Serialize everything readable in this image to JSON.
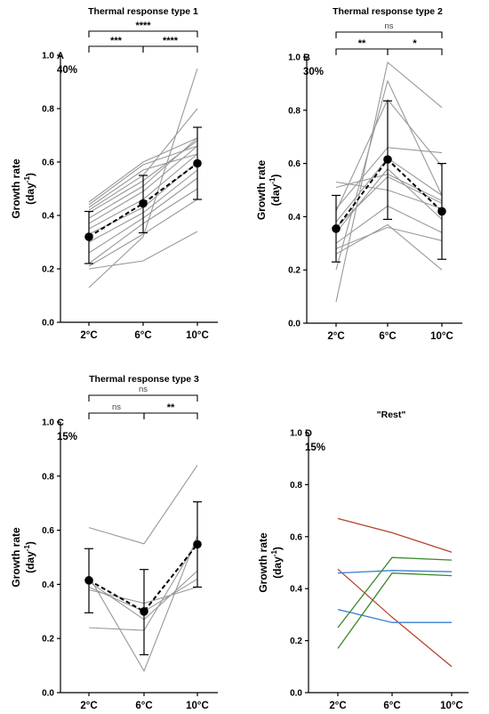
{
  "chart_data": [
    {
      "type": "line",
      "panel": "A",
      "title": "Thermal response type 1",
      "percentage": "40%",
      "ylabel_line1": "Growth rate",
      "ylabel_line2_base": "(day",
      "ylabel_line2_sup": "-1",
      "ylabel_line2_end": ")",
      "categories": [
        "2°C",
        "6°C",
        "10°C"
      ],
      "ylim": [
        0,
        1.0
      ],
      "yticks": [
        "0.0",
        "0.2",
        "0.4",
        "0.6",
        "0.8",
        "1.0"
      ],
      "series": [
        {
          "values": [
            0.13,
            0.32,
            0.95
          ]
        },
        {
          "values": [
            0.2,
            0.23,
            0.34
          ]
        },
        {
          "values": [
            0.21,
            0.33,
            0.46
          ]
        },
        {
          "values": [
            0.22,
            0.37,
            0.5
          ]
        },
        {
          "values": [
            0.26,
            0.39,
            0.54
          ]
        },
        {
          "values": [
            0.3,
            0.41,
            0.57
          ]
        },
        {
          "values": [
            0.33,
            0.43,
            0.6
          ]
        },
        {
          "values": [
            0.35,
            0.46,
            0.63
          ]
        },
        {
          "values": [
            0.37,
            0.49,
            0.66
          ]
        },
        {
          "values": [
            0.39,
            0.51,
            0.69
          ]
        },
        {
          "values": [
            0.41,
            0.53,
            0.68
          ]
        },
        {
          "values": [
            0.42,
            0.55,
            0.8
          ]
        },
        {
          "values": [
            0.43,
            0.57,
            0.63
          ]
        },
        {
          "values": [
            0.44,
            0.59,
            0.66
          ]
        },
        {
          "values": [
            0.45,
            0.6,
            0.69
          ]
        }
      ],
      "mean": {
        "values": [
          0.32,
          0.445,
          0.595
        ],
        "err_low": [
          0.22,
          0.335,
          0.46
        ],
        "err_high": [
          0.415,
          0.55,
          0.73
        ]
      },
      "significance": [
        {
          "from": 0,
          "to": 2,
          "label": "****",
          "level": 2
        },
        {
          "from": 0,
          "to": 1,
          "label": "***",
          "level": 1
        },
        {
          "from": 1,
          "to": 2,
          "label": "****",
          "level": 1
        }
      ]
    },
    {
      "type": "line",
      "panel": "B",
      "title": "Thermal response type 2",
      "percentage": "30%",
      "ylabel_line1": "Growth rate",
      "ylabel_line2_base": "(day",
      "ylabel_line2_sup": "-1",
      "ylabel_line2_end": ")",
      "categories": [
        "2°C",
        "6°C",
        "10°C"
      ],
      "ylim": [
        0,
        1.0
      ],
      "yticks": [
        "0.0",
        "0.2",
        "0.4",
        "0.6",
        "0.8",
        "1.0"
      ],
      "series": [
        {
          "values": [
            0.08,
            0.98,
            0.81
          ]
        },
        {
          "values": [
            0.2,
            0.91,
            0.48
          ]
        },
        {
          "values": [
            0.26,
            0.37,
            0.2
          ]
        },
        {
          "values": [
            0.28,
            0.36,
            0.31
          ]
        },
        {
          "values": [
            0.3,
            0.44,
            0.34
          ]
        },
        {
          "values": [
            0.34,
            0.58,
            0.39
          ]
        },
        {
          "values": [
            0.36,
            0.55,
            0.45
          ]
        },
        {
          "values": [
            0.38,
            0.62,
            0.48
          ]
        },
        {
          "values": [
            0.42,
            0.84,
            0.59
          ]
        },
        {
          "values": [
            0.43,
            0.66,
            0.64
          ]
        },
        {
          "values": [
            0.51,
            0.56,
            0.46
          ]
        },
        {
          "values": [
            0.53,
            0.5,
            0.43
          ]
        }
      ],
      "mean": {
        "values": [
          0.355,
          0.615,
          0.42
        ],
        "err_low": [
          0.23,
          0.39,
          0.24
        ],
        "err_high": [
          0.48,
          0.835,
          0.6
        ]
      },
      "significance": [
        {
          "from": 0,
          "to": 2,
          "label": "ns",
          "level": 2
        },
        {
          "from": 0,
          "to": 1,
          "label": "**",
          "level": 1
        },
        {
          "from": 1,
          "to": 2,
          "label": "*",
          "level": 1
        }
      ]
    },
    {
      "type": "line",
      "panel": "C",
      "title": "Thermal response type 3",
      "percentage": "15%",
      "ylabel_line1": "Growth rate",
      "ylabel_line2_base": "(day",
      "ylabel_line2_sup": "-1",
      "ylabel_line2_end": ")",
      "categories": [
        "2°C",
        "6°C",
        "10°C"
      ],
      "ylim": [
        0,
        1.0
      ],
      "yticks": [
        "0.0",
        "0.2",
        "0.4",
        "0.6",
        "0.8",
        "1.0"
      ],
      "series": [
        {
          "values": [
            0.61,
            0.55,
            0.84
          ]
        },
        {
          "values": [
            0.43,
            0.08,
            0.58
          ]
        },
        {
          "values": [
            0.41,
            0.27,
            0.45
          ]
        },
        {
          "values": [
            0.39,
            0.3,
            0.42
          ]
        },
        {
          "values": [
            0.38,
            0.33,
            0.39
          ]
        },
        {
          "values": [
            0.24,
            0.23,
            0.56
          ]
        }
      ],
      "mean": {
        "values": [
          0.415,
          0.3,
          0.548
        ],
        "err_low": [
          0.295,
          0.14,
          0.39
        ],
        "err_high": [
          0.532,
          0.455,
          0.705
        ]
      },
      "significance": [
        {
          "from": 0,
          "to": 2,
          "label": "ns",
          "level": 2
        },
        {
          "from": 0,
          "to": 1,
          "label": "ns",
          "level": 1
        },
        {
          "from": 1,
          "to": 2,
          "label": "**",
          "level": 1
        }
      ]
    },
    {
      "type": "line",
      "panel": "D",
      "title": "\"Rest\"",
      "percentage": "15%",
      "ylabel_line1": "Growth rate",
      "ylabel_line2_base": "(day",
      "ylabel_line2_sup": "-1",
      "ylabel_line2_end": ")",
      "categories": [
        "2°C",
        "6°C",
        "10°C"
      ],
      "ylim": [
        0,
        1.0
      ],
      "yticks": [
        "0.0",
        "0.2",
        "0.4",
        "0.6",
        "0.8",
        "1.0"
      ],
      "series": [
        {
          "color": "#b5452c",
          "values": [
            0.67,
            0.615,
            0.54
          ]
        },
        {
          "color": "#b5452c",
          "values": [
            0.475,
            0.29,
            0.1
          ]
        },
        {
          "color": "#3b7fd4",
          "values": [
            0.46,
            0.47,
            0.465
          ]
        },
        {
          "color": "#3b7fd4",
          "values": [
            0.32,
            0.27,
            0.27
          ]
        },
        {
          "color": "#3a8a2a",
          "values": [
            0.25,
            0.52,
            0.51
          ]
        },
        {
          "color": "#3a8a2a",
          "values": [
            0.17,
            0.46,
            0.45
          ]
        }
      ],
      "significance": []
    }
  ]
}
